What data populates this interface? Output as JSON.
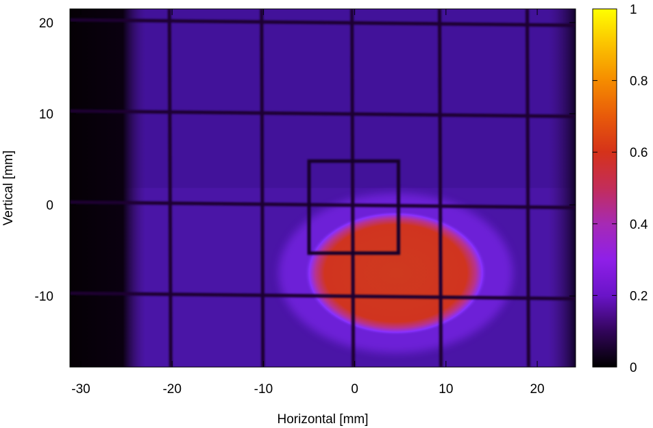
{
  "chart_data": {
    "type": "heatmap",
    "title": "",
    "xlabel": "Horizontal [mm]",
    "ylabel": "Vertical [mm]",
    "xlim": [
      -31.2,
      24.2
    ],
    "ylim": [
      -17.8,
      21.5
    ],
    "x_ticks": [
      -30,
      -20,
      -10,
      0,
      10,
      20
    ],
    "x_tick_labels": [
      "-30",
      "-20",
      "-10",
      "0",
      "10",
      "20"
    ],
    "y_ticks": [
      -10,
      0,
      10,
      20
    ],
    "y_tick_labels": [
      "-10",
      "0",
      "10",
      "20"
    ],
    "colorbar": {
      "range": [
        0,
        1
      ],
      "ticks": [
        0,
        0.2,
        0.4,
        0.6,
        0.8,
        1
      ],
      "tick_labels": [
        "0",
        "0.2",
        "0.4",
        "0.6",
        "0.8",
        "1"
      ],
      "palette": [
        "#000000",
        "#5a0f8c",
        "#9a30e8",
        "#d32a3a",
        "#ff8c00",
        "#ffff00"
      ]
    },
    "background_level": 0.12,
    "beam_spot": {
      "center": [
        4.5,
        -7.5
      ],
      "half_width": [
        9.5,
        6.5
      ],
      "peak_level": 0.55
    },
    "grid_wires_vertical_x": [
      -20.3,
      -10.2,
      -0.3,
      9.3,
      18.9
    ],
    "grid_wires_horizontal_y": [
      20,
      10,
      0,
      -10
    ],
    "inner_square": {
      "x": [
        -5,
        4.8
      ],
      "y": [
        -5.3,
        4.8
      ]
    },
    "dark_left_edge_x": -25
  }
}
